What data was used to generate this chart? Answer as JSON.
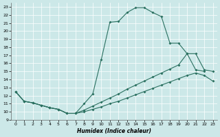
{
  "xlabel": "Humidex (Indice chaleur)",
  "bg_color": "#cce8e8",
  "line_color": "#2a7060",
  "xlim": [
    -0.5,
    23.5
  ],
  "ylim": [
    9,
    23.5
  ],
  "xticks": [
    0,
    1,
    2,
    3,
    4,
    5,
    6,
    7,
    8,
    9,
    10,
    11,
    12,
    13,
    14,
    15,
    16,
    17,
    18,
    19,
    20,
    21,
    22,
    23
  ],
  "yticks": [
    9,
    10,
    11,
    12,
    13,
    14,
    15,
    16,
    17,
    18,
    19,
    20,
    21,
    22,
    23
  ],
  "curve1_x": [
    0,
    1,
    2,
    3,
    4,
    5,
    6,
    7,
    8,
    9,
    10,
    11,
    12,
    13,
    14,
    15,
    16,
    17,
    18,
    19,
    20,
    21,
    22
  ],
  "curve1_y": [
    12.5,
    11.3,
    11.1,
    10.8,
    10.5,
    10.3,
    9.8,
    9.8,
    11.0,
    12.2,
    16.5,
    21.1,
    21.2,
    22.3,
    22.9,
    22.9,
    22.3,
    21.8,
    18.5,
    18.5,
    17.2,
    15.2,
    15.0
  ],
  "curve2_x": [
    0,
    1,
    2,
    3,
    4,
    5,
    6,
    7,
    8,
    9,
    10,
    11,
    12,
    13,
    14,
    15,
    16,
    17,
    18,
    19,
    20,
    21,
    22,
    23
  ],
  "curve2_y": [
    12.5,
    11.3,
    11.1,
    10.8,
    10.5,
    10.3,
    9.8,
    9.8,
    10.2,
    10.7,
    11.2,
    11.7,
    12.2,
    12.8,
    13.3,
    13.8,
    14.3,
    14.8,
    15.3,
    15.8,
    17.2,
    17.2,
    15.2,
    15.0
  ],
  "curve3_x": [
    0,
    1,
    2,
    3,
    4,
    5,
    6,
    7,
    8,
    9,
    10,
    11,
    12,
    13,
    14,
    15,
    16,
    17,
    18,
    19,
    20,
    21,
    22,
    23
  ],
  "curve3_y": [
    12.5,
    11.3,
    11.1,
    10.8,
    10.5,
    10.3,
    9.8,
    9.8,
    10.0,
    10.3,
    10.6,
    11.0,
    11.3,
    11.7,
    12.1,
    12.5,
    12.9,
    13.3,
    13.7,
    14.1,
    14.5,
    14.8,
    14.5,
    13.8
  ]
}
